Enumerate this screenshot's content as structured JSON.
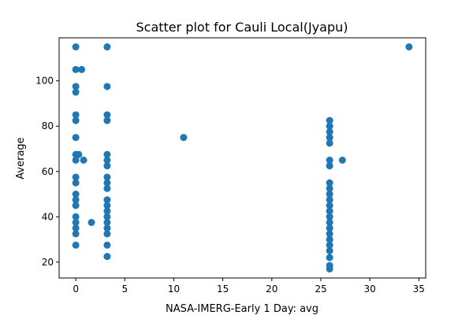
{
  "chart_data": {
    "type": "scatter",
    "title": "Scatter plot for Cauli Local(Jyapu)",
    "xlabel": "NASA-IMERG-Early 1 Day: avg",
    "ylabel": "Average",
    "xlim": [
      -1.7,
      35.7
    ],
    "ylim": [
      13.0,
      119.0
    ],
    "xticks": [
      0,
      5,
      10,
      15,
      20,
      25,
      30,
      35
    ],
    "yticks": [
      20,
      40,
      60,
      80,
      100
    ],
    "grid": false,
    "marker_color": "#1f77b4",
    "points": [
      {
        "x": 0,
        "y": 115
      },
      {
        "x": 0,
        "y": 105
      },
      {
        "x": 0,
        "y": 97.5
      },
      {
        "x": 0,
        "y": 95
      },
      {
        "x": 0,
        "y": 85
      },
      {
        "x": 0,
        "y": 82.5
      },
      {
        "x": 0,
        "y": 75
      },
      {
        "x": 0,
        "y": 67.5
      },
      {
        "x": 0,
        "y": 65
      },
      {
        "x": 0,
        "y": 57.5
      },
      {
        "x": 0,
        "y": 55
      },
      {
        "x": 0,
        "y": 50
      },
      {
        "x": 0,
        "y": 47.5
      },
      {
        "x": 0,
        "y": 45
      },
      {
        "x": 0,
        "y": 40
      },
      {
        "x": 0,
        "y": 37.5
      },
      {
        "x": 0,
        "y": 35
      },
      {
        "x": 0,
        "y": 32.5
      },
      {
        "x": 0,
        "y": 27.5
      },
      {
        "x": 0.6,
        "y": 105
      },
      {
        "x": 0.3,
        "y": 67.5
      },
      {
        "x": 0.8,
        "y": 65
      },
      {
        "x": 1.6,
        "y": 37.5
      },
      {
        "x": 3.2,
        "y": 115
      },
      {
        "x": 3.2,
        "y": 97.5
      },
      {
        "x": 3.2,
        "y": 85
      },
      {
        "x": 3.2,
        "y": 82.5
      },
      {
        "x": 3.2,
        "y": 67.5
      },
      {
        "x": 3.2,
        "y": 65
      },
      {
        "x": 3.2,
        "y": 62.5
      },
      {
        "x": 3.2,
        "y": 57.5
      },
      {
        "x": 3.2,
        "y": 55
      },
      {
        "x": 3.2,
        "y": 52.5
      },
      {
        "x": 3.2,
        "y": 47.5
      },
      {
        "x": 3.2,
        "y": 45
      },
      {
        "x": 3.2,
        "y": 42.5
      },
      {
        "x": 3.2,
        "y": 40
      },
      {
        "x": 3.2,
        "y": 37.5
      },
      {
        "x": 3.2,
        "y": 35
      },
      {
        "x": 3.2,
        "y": 32.5
      },
      {
        "x": 3.2,
        "y": 27.5
      },
      {
        "x": 3.2,
        "y": 22.5
      },
      {
        "x": 11.0,
        "y": 75
      },
      {
        "x": 25.9,
        "y": 82.5
      },
      {
        "x": 25.9,
        "y": 80
      },
      {
        "x": 25.9,
        "y": 77.5
      },
      {
        "x": 25.9,
        "y": 75
      },
      {
        "x": 25.9,
        "y": 72.5
      },
      {
        "x": 25.9,
        "y": 65
      },
      {
        "x": 25.9,
        "y": 62.5
      },
      {
        "x": 25.9,
        "y": 55
      },
      {
        "x": 25.9,
        "y": 52.5
      },
      {
        "x": 25.9,
        "y": 50
      },
      {
        "x": 25.9,
        "y": 47.5
      },
      {
        "x": 25.9,
        "y": 45
      },
      {
        "x": 25.9,
        "y": 42.5
      },
      {
        "x": 25.9,
        "y": 40
      },
      {
        "x": 25.9,
        "y": 37.5
      },
      {
        "x": 25.9,
        "y": 35
      },
      {
        "x": 25.9,
        "y": 32.5
      },
      {
        "x": 25.9,
        "y": 30
      },
      {
        "x": 25.9,
        "y": 27.5
      },
      {
        "x": 25.9,
        "y": 25
      },
      {
        "x": 25.9,
        "y": 22
      },
      {
        "x": 25.9,
        "y": 18.5
      },
      {
        "x": 25.9,
        "y": 17
      },
      {
        "x": 27.2,
        "y": 65
      },
      {
        "x": 34.0,
        "y": 115
      }
    ]
  }
}
